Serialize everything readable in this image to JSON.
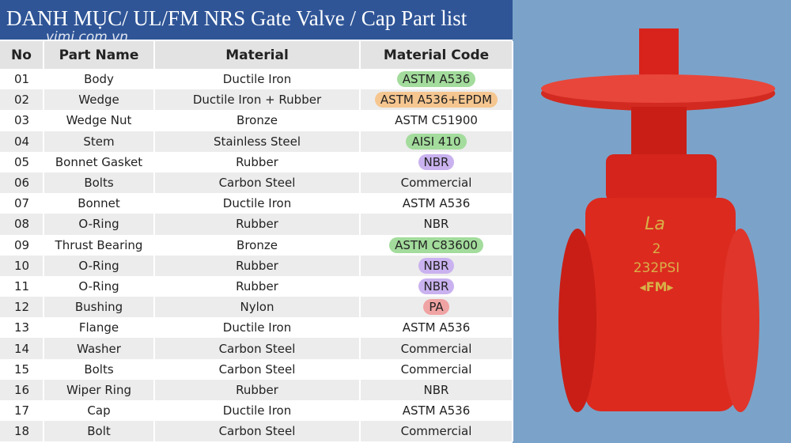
{
  "header": {
    "title": "DANH MỤC/ UL/FM NRS Gate Valve / Cap Part list",
    "watermark": "vimi.com.vn"
  },
  "table": {
    "columns": [
      "No",
      "Part Name",
      "Material",
      "Material Code"
    ],
    "rows": [
      [
        "01",
        "Body",
        "Ductile Iron",
        "ASTM A536"
      ],
      [
        "02",
        "Wedge",
        "Ductile Iron + Rubber",
        "ASTM A536+EPDM"
      ],
      [
        "03",
        "Wedge Nut",
        "Bronze",
        "ASTM C51900"
      ],
      [
        "04",
        "Stem",
        "Stainless Steel",
        "AISI 410"
      ],
      [
        "05",
        "Bonnet Gasket",
        "Rubber",
        "NBR"
      ],
      [
        "06",
        "Bolts",
        "Carbon Steel",
        "Commercial"
      ],
      [
        "07",
        "Bonnet",
        "Ductile Iron",
        "ASTM A536"
      ],
      [
        "08",
        "O-Ring",
        "Rubber",
        "NBR"
      ],
      [
        "09",
        "Thrust Bearing",
        "Bronze",
        "ASTM C83600"
      ],
      [
        "10",
        "O-Ring",
        "Rubber",
        "NBR"
      ],
      [
        "11",
        "O-Ring",
        "Rubber",
        "NBR"
      ],
      [
        "12",
        "Bushing",
        "Nylon",
        "PA"
      ],
      [
        "13",
        "Flange",
        "Ductile Iron",
        "ASTM A536"
      ],
      [
        "14",
        "Washer",
        "Carbon Steel",
        "Commercial"
      ],
      [
        "15",
        "Bolts",
        "Carbon Steel",
        "Commercial"
      ],
      [
        "16",
        "Wiper Ring",
        "Rubber",
        "NBR"
      ],
      [
        "17",
        "Cap",
        "Ductile Iron",
        "ASTM A536"
      ],
      [
        "18",
        "Bolt",
        "Carbon Steel",
        "Commercial"
      ]
    ],
    "code_highlights": [
      "#a3dc9c",
      "#f5c690",
      null,
      "#a3dc9c",
      "#c9b2ef",
      null,
      null,
      null,
      "#a3dc9c",
      "#c9b2ef",
      "#c9b2ef",
      "#f0a3a3",
      null,
      null,
      null,
      null,
      null,
      null
    ]
  },
  "valve": {
    "logo": "La",
    "size": "2",
    "pressure": "232PSI",
    "mark": "◂FM▸"
  }
}
